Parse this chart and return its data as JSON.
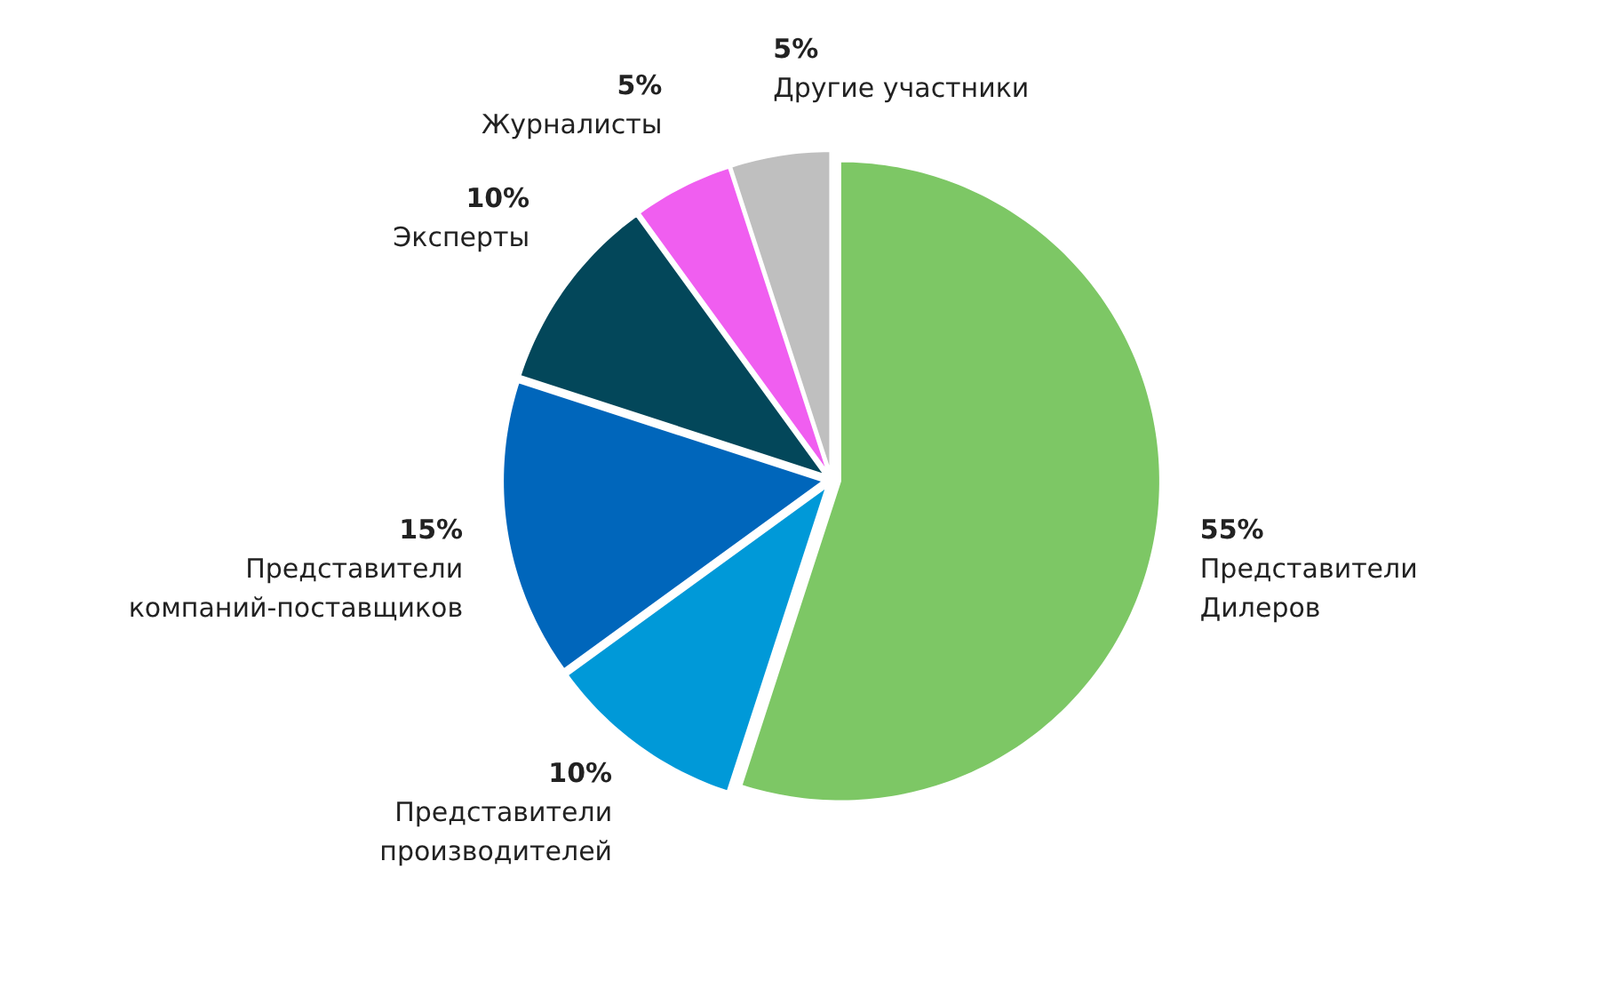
{
  "chart_data": {
    "type": "pie",
    "categories": [
      "Представители Дилеров",
      "Представители производителей",
      "Представители компаний-поставщиков",
      "Эксперты",
      "Журналисты",
      "Другие участники"
    ],
    "values": [
      55,
      10,
      15,
      10,
      5,
      5
    ],
    "value_labels": [
      "55%",
      "10%",
      "15%",
      "10%",
      "5%",
      "5%"
    ],
    "colors": [
      "#7dc765",
      "#0099d8",
      "#0066bb",
      "#03475a",
      "#f05ef0",
      "#bfbfbf"
    ]
  }
}
